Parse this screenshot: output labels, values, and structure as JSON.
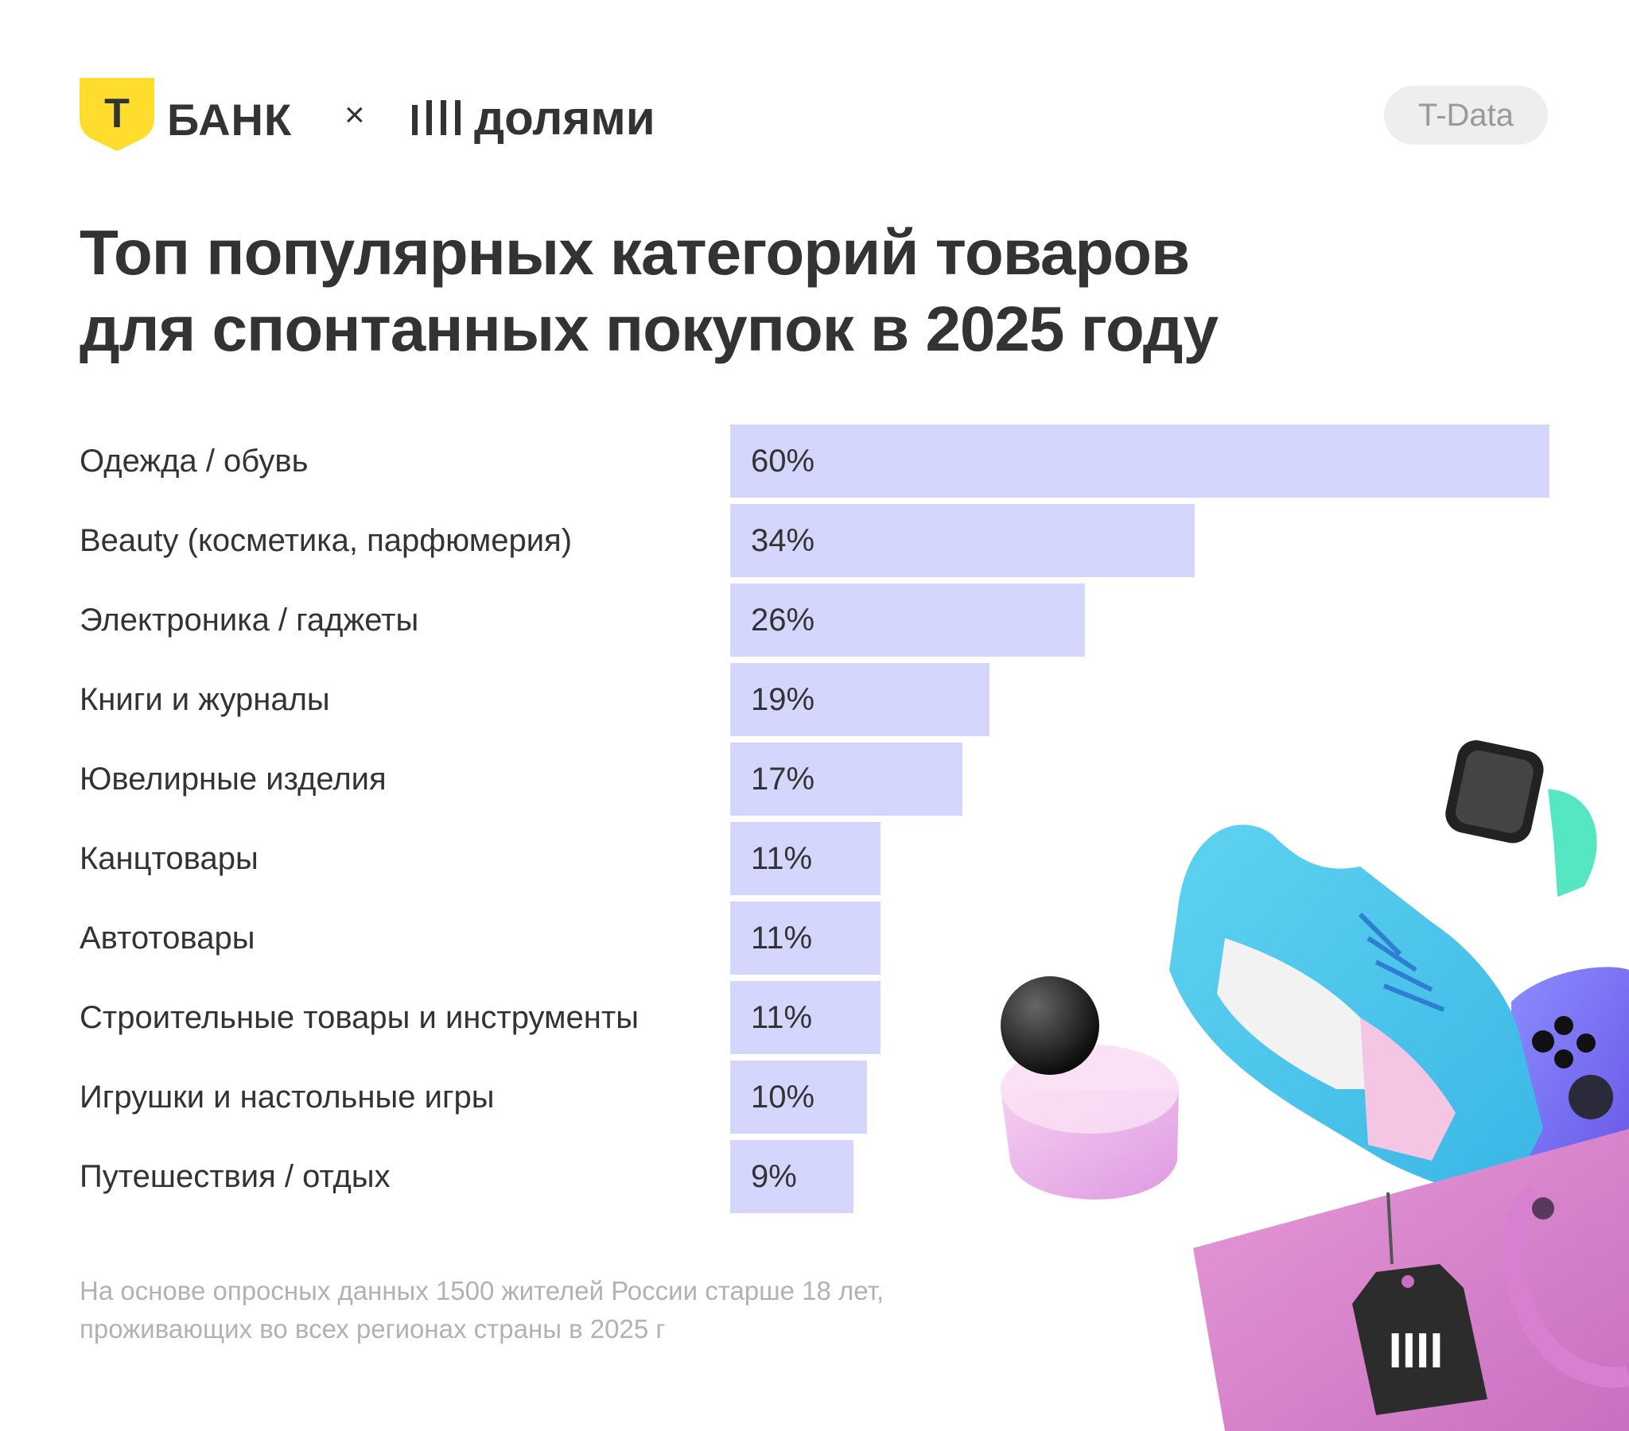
{
  "brand": {
    "bank_logo_letter": "Т",
    "bank_name": "БАНК",
    "times": "×",
    "partner_name": "долями"
  },
  "source_badge": "T-Data",
  "title_lines": [
    "Топ популярных категорий товаров",
    "для спонтанных покупок в 2025 году"
  ],
  "chart_data": {
    "type": "bar",
    "orientation": "horizontal",
    "title": "Топ популярных категорий товаров для спонтанных покупок в 2025 году",
    "categories": [
      "Одежда / обувь",
      "Beauty (косметика, парфюмерия)",
      "Электроника / гаджеты",
      "Книги и журналы",
      "Ювелирные изделия",
      "Канцтовары",
      "Автотовары",
      "Строительные товары и инструменты",
      "Игрушки и настольные игры",
      "Путешествия / отдых"
    ],
    "values": [
      60,
      34,
      26,
      19,
      17,
      11,
      11,
      11,
      10,
      9
    ],
    "value_labels": [
      "60%",
      "34%",
      "26%",
      "19%",
      "17%",
      "11%",
      "11%",
      "11%",
      "10%",
      "9%"
    ],
    "unit": "%",
    "xlim": [
      0,
      60
    ],
    "grid": false,
    "legend": "none",
    "bar_color": "#d4d6fd"
  },
  "footnote_lines": [
    "На основе опросных данных 1500 жителей России старше 18 лет,",
    "проживающих во всех регионах страны в 2025 г"
  ],
  "colors": {
    "bank_yellow": "#ffdd2d",
    "text": "#333333",
    "muted": "#b2b2b2",
    "badge_bg": "#eeeeee",
    "bar": "#d4d6fd"
  },
  "illustration_icons": [
    "sneaker-icon",
    "smartwatch-icon",
    "gamepad-icon",
    "perfume-icon",
    "shopping-bag-icon",
    "price-tag-icon"
  ],
  "tag_mark": "IIII"
}
